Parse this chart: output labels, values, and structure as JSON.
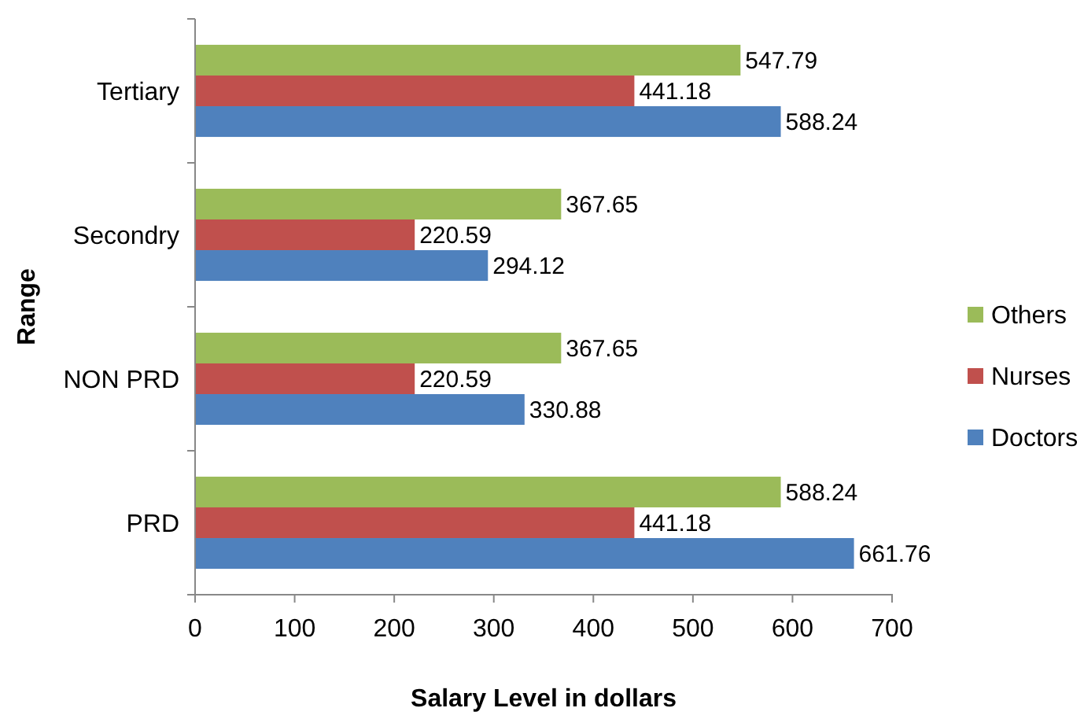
{
  "chart_data": {
    "type": "bar",
    "orientation": "horizontal",
    "xlabel": "Salary Level in dollars",
    "ylabel": "Range",
    "categories": [
      "Tertiary",
      "Secondry",
      "NON PRD",
      "PRD"
    ],
    "series": [
      {
        "name": "Others",
        "color": "#9bbb59",
        "values": [
          547.79,
          367.65,
          367.65,
          588.24
        ]
      },
      {
        "name": "Nurses",
        "color": "#c0504d",
        "values": [
          441.18,
          220.59,
          220.59,
          441.18
        ]
      },
      {
        "name": "Doctors",
        "color": "#4f81bd",
        "values": [
          588.24,
          294.12,
          330.88,
          661.76
        ]
      }
    ],
    "xlim": [
      0,
      700
    ],
    "xticks": [
      0,
      100,
      200,
      300,
      400,
      500,
      600,
      700
    ],
    "grid": false,
    "legend": "right",
    "data_labels": true
  }
}
